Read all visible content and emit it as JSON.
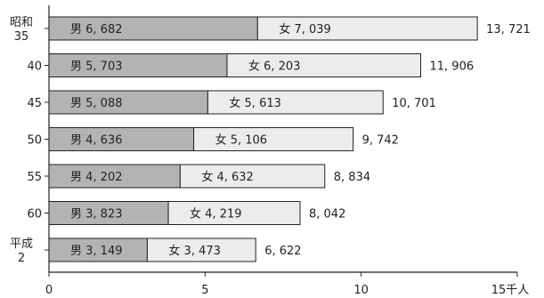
{
  "chart_data": {
    "type": "bar",
    "orientation": "horizontal",
    "stacked": true,
    "categories": [
      [
        "昭和",
        "35"
      ],
      [
        "40"
      ],
      [
        "45"
      ],
      [
        "50"
      ],
      [
        "55"
      ],
      [
        "60"
      ],
      [
        "平成",
        "2"
      ]
    ],
    "series": [
      {
        "name": "男",
        "color": "#b3b3b3",
        "values": [
          6682,
          5703,
          5088,
          4636,
          4202,
          3823,
          3149
        ],
        "value_labels": [
          "男 6, 682",
          "男 5, 703",
          "男 5, 088",
          "男 4, 636",
          "男 4, 202",
          "男 3, 823",
          "男 3, 149"
        ]
      },
      {
        "name": "女",
        "color": "#ececec",
        "values": [
          7039,
          6203,
          5613,
          5106,
          4632,
          4219,
          3473
        ],
        "value_labels": [
          "女 7, 039",
          "女 6, 203",
          "女 5, 613",
          "女 5, 106",
          "女 4, 632",
          "女 4, 219",
          "女 3, 473"
        ]
      }
    ],
    "totals": [
      13721,
      11906,
      10701,
      9742,
      8834,
      8042,
      6622
    ],
    "total_labels": [
      "13, 721",
      "11, 906",
      "10, 701",
      "9, 742",
      "8, 834",
      "8, 042",
      "6, 622"
    ],
    "xlim": [
      0,
      15000
    ],
    "xticks": [
      0,
      5000,
      10000,
      15000
    ],
    "xtick_labels": [
      "0",
      "5",
      "10",
      "15千人"
    ],
    "title": "",
    "xlabel": "",
    "ylabel": "",
    "grid": false
  }
}
